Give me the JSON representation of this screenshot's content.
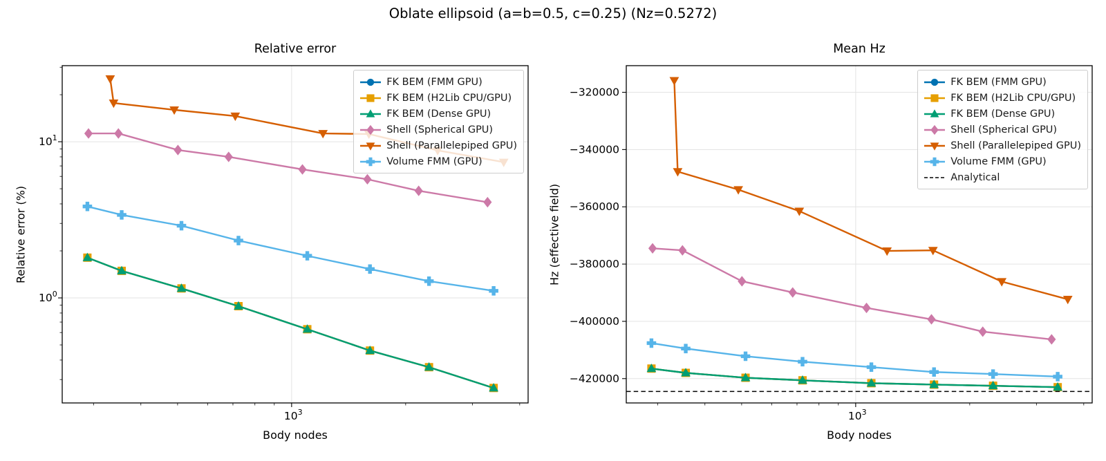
{
  "figure": {
    "suptitle": "Oblate ellipsoid (a=b=0.5, c=0.25)  (Nz=0.5272)",
    "background": "#ffffff",
    "grid_color": "#e3e3e3",
    "spine_color": "#000000"
  },
  "chart_data": [
    {
      "type": "line",
      "title": "Relative error",
      "xlabel": "Body nodes",
      "ylabel": "Relative error (%)",
      "xscale": "log",
      "yscale": "log",
      "xlim": [
        248,
        4210
      ],
      "ylim": [
        0.2125,
        30.7
      ],
      "grid": true,
      "legend_position": "upper-right",
      "x_ticks": {
        "major": [
          {
            "v": 1000,
            "base": "10",
            "exp": "3"
          }
        ],
        "minor": [
          300,
          400,
          500,
          600,
          700,
          800,
          900,
          2000,
          3000,
          4000
        ]
      },
      "y_ticks": {
        "major": [
          {
            "v": 10,
            "base": "10",
            "exp": "1"
          },
          {
            "v": 1,
            "base": "10",
            "exp": "0"
          }
        ],
        "minor": [
          0.3,
          0.4,
          0.5,
          0.6,
          0.7,
          0.8,
          0.9,
          2,
          3,
          4,
          5,
          6,
          7,
          8,
          9,
          20,
          30
        ]
      },
      "series": [
        {
          "name": "FK BEM (FMM GPU)",
          "color": "#0072B2",
          "marker": "circle",
          "x": [
            289,
            356,
            512,
            724,
            1100,
            1610,
            2305,
            3414
          ],
          "y": [
            1.81,
            1.49,
            1.15,
            0.885,
            0.63,
            0.46,
            0.36,
            0.265
          ]
        },
        {
          "name": "FK BEM (H2Lib CPU/GPU)",
          "color": "#E69F00",
          "marker": "square",
          "x": [
            289,
            356,
            512,
            724,
            1100,
            1610,
            2305,
            3414
          ],
          "y": [
            1.81,
            1.49,
            1.15,
            0.885,
            0.63,
            0.46,
            0.36,
            0.265
          ]
        },
        {
          "name": "FK BEM (Dense GPU)",
          "color": "#009E73",
          "marker": "triangle-up",
          "x": [
            289,
            356,
            512,
            724,
            1100,
            1610,
            2305,
            3414
          ],
          "y": [
            1.81,
            1.49,
            1.15,
            0.885,
            0.63,
            0.46,
            0.36,
            0.265
          ]
        },
        {
          "name": "Shell (Spherical GPU)",
          "color": "#CC79A7",
          "marker": "diamond",
          "x": [
            291,
            349,
            501,
            682,
            1068,
            1585,
            2165,
            3290
          ],
          "y": [
            11.3,
            11.3,
            8.85,
            8.0,
            6.65,
            5.75,
            4.85,
            4.1
          ]
        },
        {
          "name": "Shell (Parallelepiped GPU)",
          "color": "#D55E00",
          "marker": "triangle-down",
          "x": [
            332,
            339,
            490,
            710,
            1210,
            1600,
            2430,
            3630
          ],
          "y": [
            25.3,
            17.7,
            16.0,
            14.6,
            11.3,
            11.2,
            8.8,
            7.4
          ]
        },
        {
          "name": "Volume FMM (GPU)",
          "color": "#56B4E9",
          "marker": "plus",
          "x": [
            289,
            356,
            512,
            724,
            1100,
            1610,
            2305,
            3414
          ],
          "y": [
            3.85,
            3.4,
            2.9,
            2.33,
            1.86,
            1.53,
            1.28,
            1.11
          ]
        }
      ]
    },
    {
      "type": "line",
      "title": "Mean Hz",
      "xlabel": "Body nodes",
      "ylabel": "Hz (effective field)",
      "xscale": "log",
      "yscale": "linear",
      "xlim": [
        248,
        4210
      ],
      "ylim": [
        -428500,
        -310700
      ],
      "grid": true,
      "legend_position": "upper-right",
      "x_ticks": {
        "major": [
          {
            "v": 1000,
            "base": "10",
            "exp": "3"
          }
        ],
        "minor": [
          300,
          400,
          500,
          600,
          700,
          800,
          900,
          2000,
          3000,
          4000
        ]
      },
      "y_ticks": {
        "major": [
          {
            "v": -320000,
            "label": "−320000"
          },
          {
            "v": -340000,
            "label": "−340000"
          },
          {
            "v": -360000,
            "label": "−360000"
          },
          {
            "v": -380000,
            "label": "−380000"
          },
          {
            "v": -400000,
            "label": "−400000"
          },
          {
            "v": -420000,
            "label": "−420000"
          }
        ],
        "minor": []
      },
      "series": [
        {
          "name": "FK BEM (FMM GPU)",
          "color": "#0072B2",
          "marker": "circle",
          "x": [
            289,
            356,
            512,
            724,
            1100,
            1610,
            2305,
            3414
          ],
          "y": [
            -416500,
            -418000,
            -419700,
            -420600,
            -421600,
            -422100,
            -422500,
            -423000
          ]
        },
        {
          "name": "FK BEM (H2Lib CPU/GPU)",
          "color": "#E69F00",
          "marker": "square",
          "x": [
            289,
            356,
            512,
            724,
            1100,
            1610,
            2305,
            3414
          ],
          "y": [
            -416500,
            -418000,
            -419700,
            -420600,
            -421600,
            -422100,
            -422500,
            -423000
          ]
        },
        {
          "name": "FK BEM (Dense GPU)",
          "color": "#009E73",
          "marker": "triangle-up",
          "x": [
            289,
            356,
            512,
            724,
            1100,
            1610,
            2305,
            3414
          ],
          "y": [
            -416500,
            -418000,
            -419700,
            -420600,
            -421600,
            -422100,
            -422500,
            -423000
          ]
        },
        {
          "name": "Shell (Spherical GPU)",
          "color": "#CC79A7",
          "marker": "diamond",
          "x": [
            291,
            349,
            501,
            682,
            1068,
            1585,
            2165,
            3290
          ],
          "y": [
            -374500,
            -375200,
            -386000,
            -389900,
            -395300,
            -399300,
            -403600,
            -406300
          ]
        },
        {
          "name": "Shell (Parallelepiped GPU)",
          "color": "#D55E00",
          "marker": "triangle-down",
          "x": [
            332,
            339,
            490,
            710,
            1210,
            1600,
            2430,
            3630
          ],
          "y": [
            -315900,
            -347700,
            -354000,
            -361500,
            -375400,
            -375200,
            -386100,
            -392300
          ]
        },
        {
          "name": "Volume FMM (GPU)",
          "color": "#56B4E9",
          "marker": "plus",
          "x": [
            289,
            356,
            512,
            724,
            1100,
            1610,
            2305,
            3414
          ],
          "y": [
            -407600,
            -409500,
            -412200,
            -414100,
            -416000,
            -417700,
            -418400,
            -419300
          ]
        },
        {
          "name": "Analytical",
          "color": "#000000",
          "marker": "none",
          "style": "dashed",
          "hline": -424500
        }
      ]
    }
  ]
}
